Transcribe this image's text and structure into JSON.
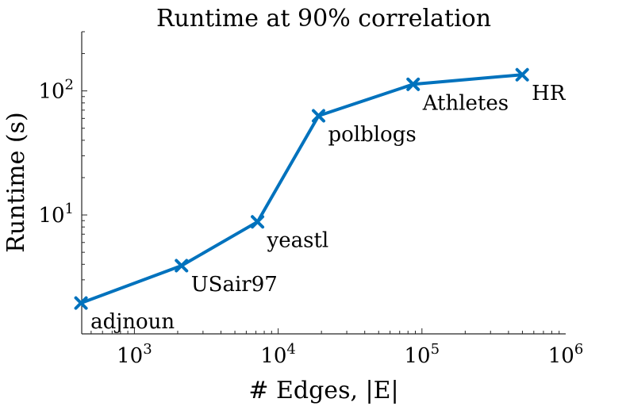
{
  "chart_data": {
    "type": "line",
    "title": "Runtime at 90% correlation",
    "xlabel": "# Edges, |E|",
    "ylabel": "Runtime (s)",
    "x_scale": "log",
    "y_scale": "log",
    "xlim": [
      430,
      1000000
    ],
    "ylim": [
      1.1,
      300
    ],
    "grid": false,
    "x_ticks": [
      {
        "value": 1000,
        "base": "10",
        "exp": "3"
      },
      {
        "value": 10000,
        "base": "10",
        "exp": "4"
      },
      {
        "value": 100000,
        "base": "10",
        "exp": "5"
      },
      {
        "value": 1000000,
        "base": "10",
        "exp": "6"
      }
    ],
    "y_ticks": [
      {
        "value": 10,
        "base": "10",
        "exp": "1"
      },
      {
        "value": 100,
        "base": "10",
        "exp": "2"
      }
    ],
    "series": [
      {
        "color": "#0072BD",
        "marker": "x",
        "points": [
          {
            "x": 425,
            "y": 1.95,
            "label": "adjnoun"
          },
          {
            "x": 2126,
            "y": 3.9,
            "label": "USair97"
          },
          {
            "x": 7182,
            "y": 8.8,
            "label": "yeastl"
          },
          {
            "x": 19090,
            "y": 63,
            "label": "polblogs"
          },
          {
            "x": 86858,
            "y": 113,
            "label": "Athletes"
          },
          {
            "x": 498202,
            "y": 135,
            "label": "HR"
          }
        ]
      }
    ]
  }
}
